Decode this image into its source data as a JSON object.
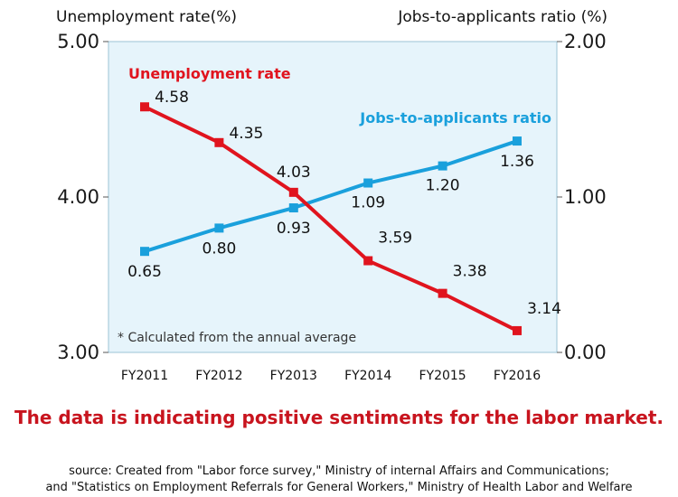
{
  "colors": {
    "unemployment": "#e0141e",
    "jobs_ratio": "#1aa0dc",
    "plot_background": "#e6f4fb",
    "headline": "#c8141e"
  },
  "chart_data": {
    "type": "line",
    "categories": [
      "FY2011",
      "FY2012",
      "FY2013",
      "FY2014",
      "FY2015",
      "FY2016"
    ],
    "left_axis_title": "Unemployment rate(%)",
    "right_axis_title": "Jobs-to-applicants ratio (%)",
    "left_ylim": [
      3.0,
      5.0
    ],
    "right_ylim": [
      0.0,
      2.0
    ],
    "left_ticks": [
      "5.00",
      "4.00",
      "3.00"
    ],
    "right_ticks": [
      "2.00",
      "1.00",
      "0.00"
    ],
    "series": [
      {
        "name": "Unemployment rate",
        "axis": "left",
        "values": [
          4.58,
          4.35,
          4.03,
          3.59,
          3.38,
          3.14
        ],
        "labels": [
          "4.58",
          "4.35",
          "4.03",
          "3.59",
          "3.38",
          "3.14"
        ]
      },
      {
        "name": "Jobs-to-applicants ratio",
        "axis": "right",
        "values": [
          0.65,
          0.8,
          0.93,
          1.09,
          1.2,
          1.36
        ],
        "labels": [
          "0.65",
          "0.80",
          "0.93",
          "1.09",
          "1.20",
          "1.36"
        ]
      }
    ],
    "note": "* Calculated from the annual average",
    "grid": false,
    "legend": "inline labels"
  },
  "headline": "The data is indicating positive sentiments for the labor market.",
  "source_line1": "source: Created from \"Labor force survey,\" Ministry of internal Affairs and Communications;",
  "source_line2": "and \"Statistics on Employment Referrals for General Workers,\" Ministry of Health Labor and Welfare"
}
